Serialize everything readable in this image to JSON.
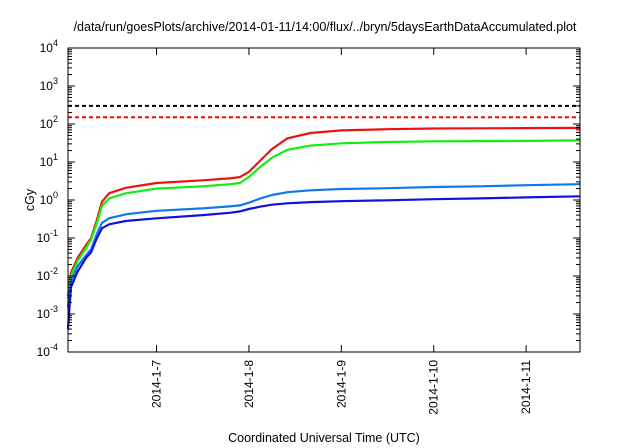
{
  "chart_data": {
    "type": "line",
    "title": "/data/run/goesPlots/archive/2014-01-11/14:00/flux/../bryn/5daysEarthDataAccumulated.plot",
    "xlabel": "Coordinated Universal Time (UTC)",
    "ylabel": "cGy",
    "y_scale": "log",
    "ylim": [
      0.0001,
      10000
    ],
    "xlim": [
      "2014-01-06T01:00",
      "2014-01-11T14:00"
    ],
    "x_ticks": [
      {
        "label": "2014-1-7",
        "date": "2014-01-07T00:00"
      },
      {
        "label": "2014-1-8",
        "date": "2014-01-08T00:00"
      },
      {
        "label": "2014-1-9",
        "date": "2014-01-09T00:00"
      },
      {
        "label": "2014-1-10",
        "date": "2014-01-10T00:00"
      },
      {
        "label": "2014-1-11",
        "date": "2014-01-11T00:00"
      }
    ],
    "y_ticks": [
      {
        "base": "10",
        "exp": "-4",
        "value": 0.0001
      },
      {
        "base": "10",
        "exp": "-3",
        "value": 0.001
      },
      {
        "base": "10",
        "exp": "-2",
        "value": 0.01
      },
      {
        "base": "10",
        "exp": "-1",
        "value": 0.1
      },
      {
        "base": "10",
        "exp": "0",
        "value": 1
      },
      {
        "base": "10",
        "exp": "1",
        "value": 10
      },
      {
        "base": "10",
        "exp": "2",
        "value": 100
      },
      {
        "base": "10",
        "exp": "3",
        "value": 1000
      },
      {
        "base": "10",
        "exp": "4",
        "value": 10000
      }
    ],
    "grid": false,
    "legend": "none",
    "reference_lines": [
      {
        "y": 300,
        "color": "#000000",
        "style": "dashed"
      },
      {
        "y": 150,
        "color": "#ff0000",
        "style": "dashed"
      }
    ],
    "series": [
      {
        "color": "#ee1111",
        "points": [
          [
            "2014-01-06T01:00",
            0.003
          ],
          [
            "2014-01-06T01:45",
            0.012
          ],
          [
            "2014-01-06T03:30",
            0.03
          ],
          [
            "2014-01-06T05:40",
            0.065
          ],
          [
            "2014-01-06T07:00",
            0.1
          ],
          [
            "2014-01-06T08:30",
            0.3
          ],
          [
            "2014-01-06T09:50",
            0.9
          ],
          [
            "2014-01-06T11:40",
            1.5
          ],
          [
            "2014-01-06T16:00",
            2.1
          ],
          [
            "2014-01-07T00:00",
            2.8
          ],
          [
            "2014-01-07T12:00",
            3.3
          ],
          [
            "2014-01-07T19:00",
            3.7
          ],
          [
            "2014-01-07T21:40",
            4.0
          ],
          [
            "2014-01-08T00:00",
            5.5
          ],
          [
            "2014-01-08T03:00",
            11
          ],
          [
            "2014-01-08T06:00",
            22
          ],
          [
            "2014-01-08T10:00",
            42
          ],
          [
            "2014-01-08T16:00",
            58
          ],
          [
            "2014-01-09T00:00",
            68
          ],
          [
            "2014-01-09T12:00",
            73
          ],
          [
            "2014-01-10T00:00",
            76
          ],
          [
            "2014-01-10T12:00",
            77
          ],
          [
            "2014-01-11T00:00",
            78
          ],
          [
            "2014-01-11T14:00",
            79
          ]
        ]
      },
      {
        "color": "#11ee11",
        "points": [
          [
            "2014-01-06T01:00",
            0.0025
          ],
          [
            "2014-01-06T01:45",
            0.01
          ],
          [
            "2014-01-06T03:30",
            0.025
          ],
          [
            "2014-01-06T05:40",
            0.055
          ],
          [
            "2014-01-06T07:00",
            0.09
          ],
          [
            "2014-01-06T08:30",
            0.25
          ],
          [
            "2014-01-06T09:50",
            0.7
          ],
          [
            "2014-01-06T11:40",
            1.1
          ],
          [
            "2014-01-06T16:00",
            1.5
          ],
          [
            "2014-01-07T00:00",
            2.0
          ],
          [
            "2014-01-07T12:00",
            2.3
          ],
          [
            "2014-01-07T19:00",
            2.6
          ],
          [
            "2014-01-07T21:40",
            2.8
          ],
          [
            "2014-01-08T00:00",
            4.0
          ],
          [
            "2014-01-08T03:00",
            7.5
          ],
          [
            "2014-01-08T06:00",
            13
          ],
          [
            "2014-01-08T10:00",
            21
          ],
          [
            "2014-01-08T16:00",
            27
          ],
          [
            "2014-01-09T00:00",
            31
          ],
          [
            "2014-01-09T12:00",
            33.5
          ],
          [
            "2014-01-10T00:00",
            35
          ],
          [
            "2014-01-10T12:00",
            35.5
          ],
          [
            "2014-01-11T00:00",
            36
          ],
          [
            "2014-01-11T14:00",
            37
          ]
        ]
      },
      {
        "color": "#1177ee",
        "points": [
          [
            "2014-01-06T01:00",
            0.0015
          ],
          [
            "2014-01-06T01:45",
            0.007
          ],
          [
            "2014-01-06T03:30",
            0.018
          ],
          [
            "2014-01-06T05:40",
            0.035
          ],
          [
            "2014-01-06T07:00",
            0.05
          ],
          [
            "2014-01-06T08:30",
            0.13
          ],
          [
            "2014-01-06T09:50",
            0.25
          ],
          [
            "2014-01-06T11:40",
            0.33
          ],
          [
            "2014-01-06T16:00",
            0.42
          ],
          [
            "2014-01-07T00:00",
            0.52
          ],
          [
            "2014-01-07T12:00",
            0.6
          ],
          [
            "2014-01-07T19:00",
            0.68
          ],
          [
            "2014-01-07T21:40",
            0.72
          ],
          [
            "2014-01-08T00:00",
            0.85
          ],
          [
            "2014-01-08T03:00",
            1.1
          ],
          [
            "2014-01-08T06:00",
            1.35
          ],
          [
            "2014-01-08T10:00",
            1.6
          ],
          [
            "2014-01-08T16:00",
            1.8
          ],
          [
            "2014-01-09T00:00",
            1.95
          ],
          [
            "2014-01-09T12:00",
            2.05
          ],
          [
            "2014-01-10T00:00",
            2.2
          ],
          [
            "2014-01-10T12:00",
            2.3
          ],
          [
            "2014-01-11T00:00",
            2.45
          ],
          [
            "2014-01-11T14:00",
            2.6
          ]
        ]
      },
      {
        "color": "#1111dd",
        "points": [
          [
            "2014-01-06T01:00",
            0.0004
          ],
          [
            "2014-01-06T01:45",
            0.005
          ],
          [
            "2014-01-06T03:30",
            0.013
          ],
          [
            "2014-01-06T05:40",
            0.03
          ],
          [
            "2014-01-06T07:00",
            0.042
          ],
          [
            "2014-01-06T08:30",
            0.1
          ],
          [
            "2014-01-06T09:50",
            0.18
          ],
          [
            "2014-01-06T11:40",
            0.23
          ],
          [
            "2014-01-06T16:00",
            0.28
          ],
          [
            "2014-01-07T00:00",
            0.33
          ],
          [
            "2014-01-07T12:00",
            0.4
          ],
          [
            "2014-01-07T19:00",
            0.46
          ],
          [
            "2014-01-07T21:40",
            0.5
          ],
          [
            "2014-01-08T00:00",
            0.58
          ],
          [
            "2014-01-08T03:00",
            0.67
          ],
          [
            "2014-01-08T06:00",
            0.75
          ],
          [
            "2014-01-08T10:00",
            0.82
          ],
          [
            "2014-01-08T16:00",
            0.88
          ],
          [
            "2014-01-09T00:00",
            0.93
          ],
          [
            "2014-01-09T12:00",
            0.98
          ],
          [
            "2014-01-10T00:00",
            1.05
          ],
          [
            "2014-01-10T12:00",
            1.1
          ],
          [
            "2014-01-11T00:00",
            1.17
          ],
          [
            "2014-01-11T14:00",
            1.25
          ]
        ]
      }
    ]
  }
}
